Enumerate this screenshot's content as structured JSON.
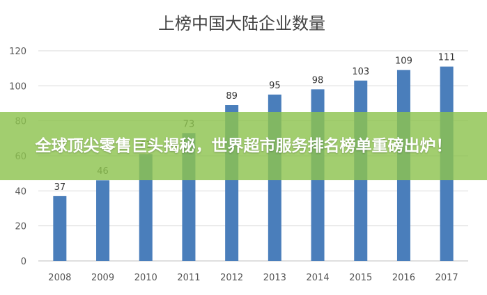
{
  "chart_data": {
    "type": "bar",
    "title": "上榜中国大陆企业数量",
    "categories": [
      "2008",
      "2009",
      "2010",
      "2011",
      "2012",
      "2013",
      "2014",
      "2015",
      "2016",
      "2017"
    ],
    "values": [
      37,
      46,
      61,
      73,
      89,
      95,
      98,
      103,
      109,
      111
    ],
    "data_labels": [
      "37",
      "46",
      "61",
      "73",
      "89",
      "95",
      "98",
      "103",
      "109",
      "111"
    ],
    "ylim": [
      0,
      120
    ],
    "yticks": [
      0,
      20,
      40,
      60,
      80,
      100,
      120
    ],
    "grid": true,
    "bar_color": "#4a7ebb"
  },
  "banner": {
    "text": "全球顶尖零售巨头揭秘，世界超市服务排名榜单重磅出炉！",
    "background": "#8dc34f"
  }
}
